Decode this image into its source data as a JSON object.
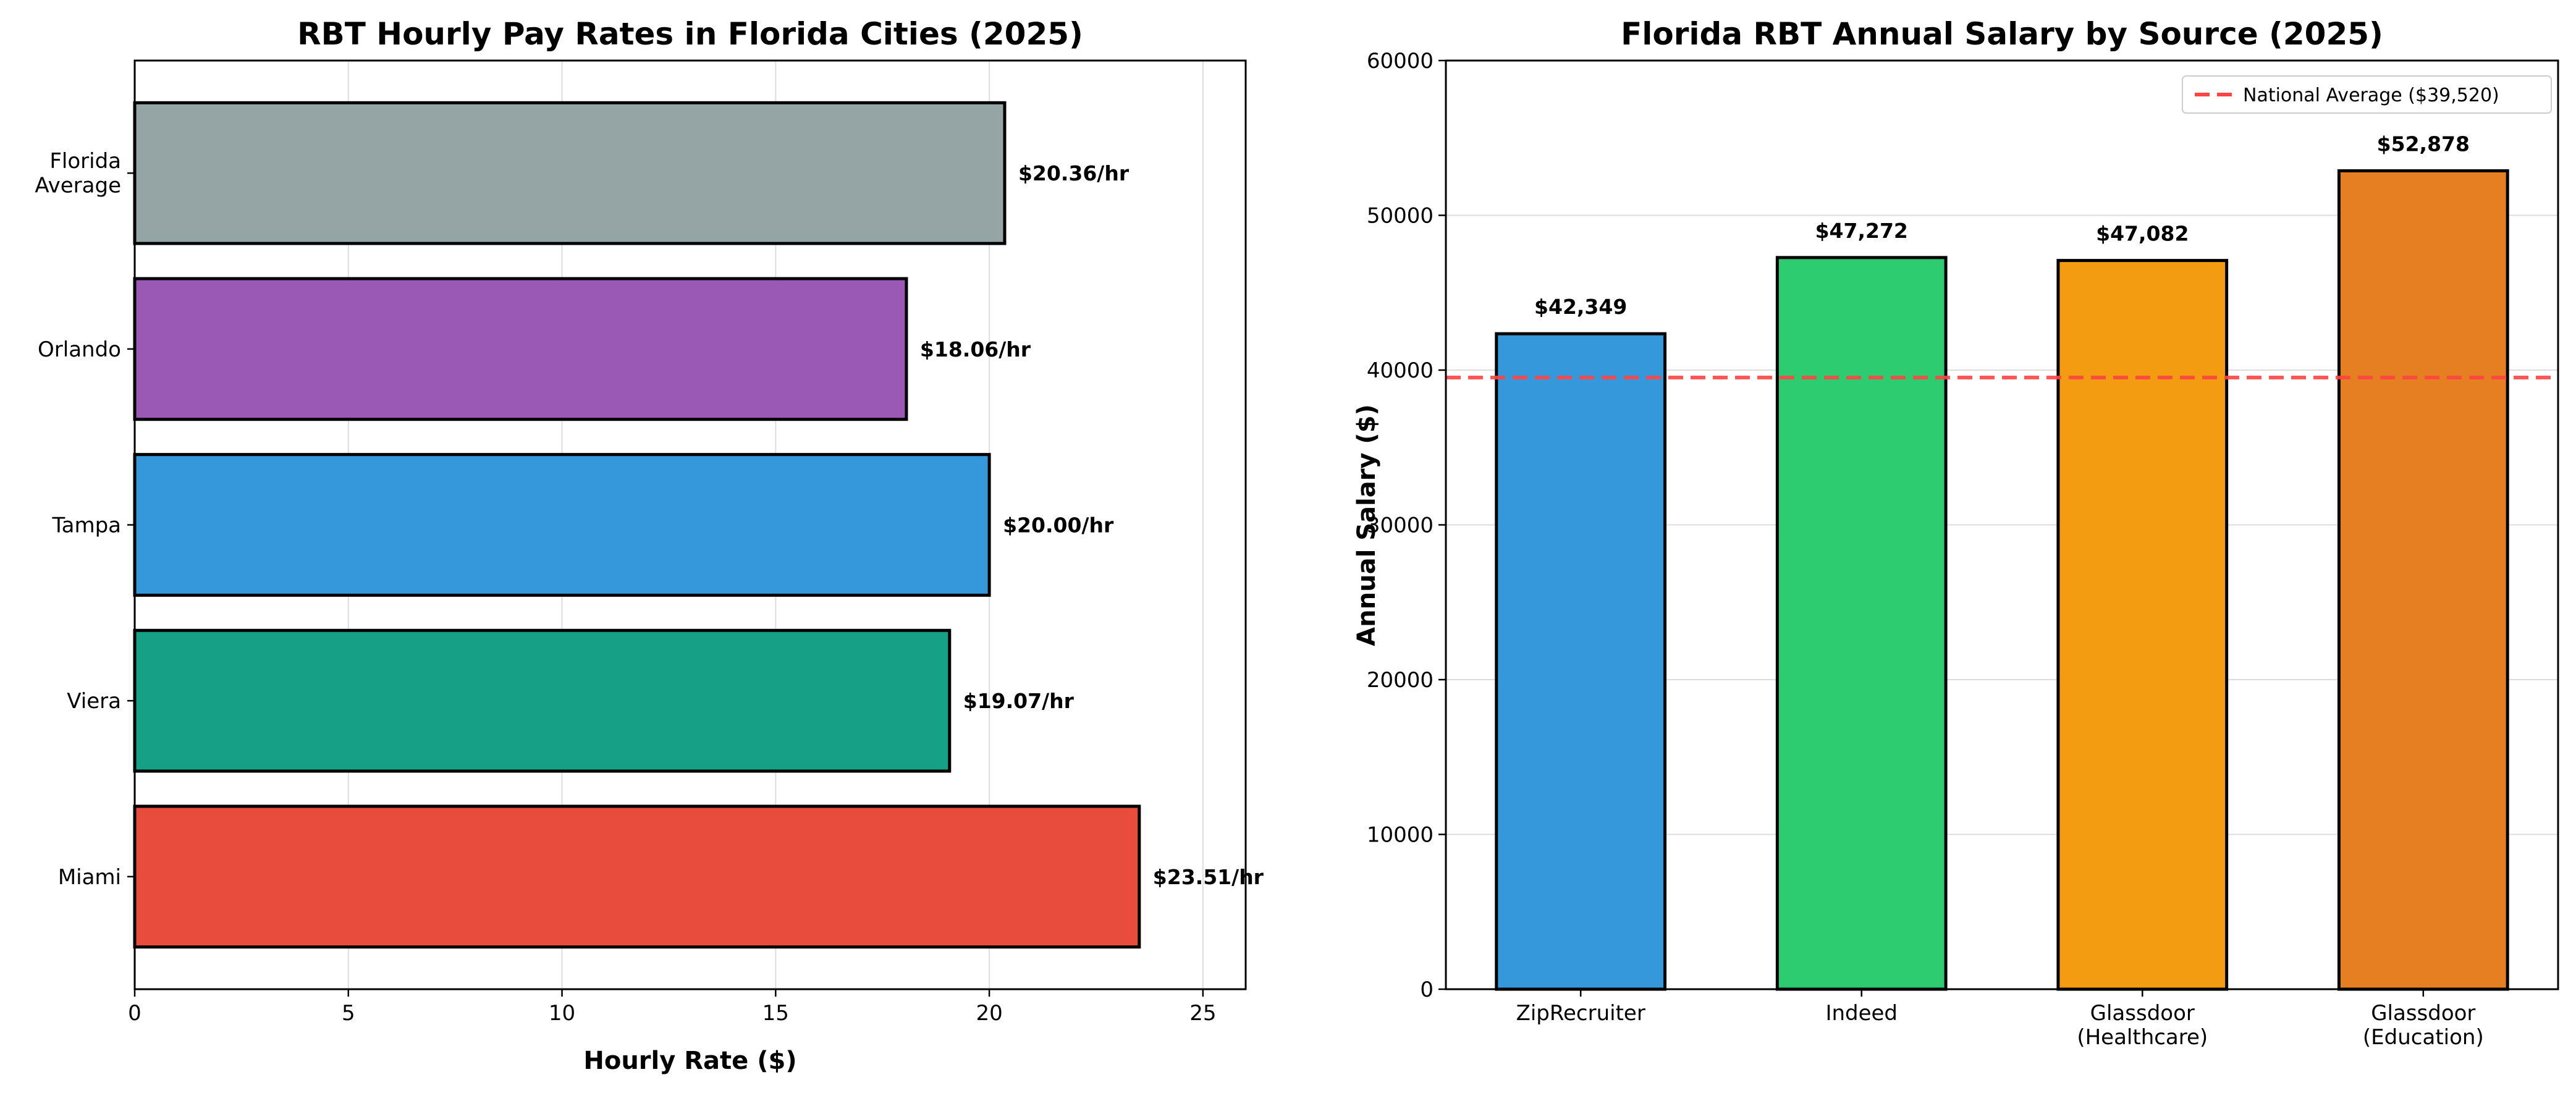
{
  "chart_data": [
    {
      "type": "bar",
      "orientation": "horizontal",
      "title": "RBT Hourly Pay Rates in Florida Cities (2025)",
      "xlabel": "Hourly Rate ($)",
      "ylabel": "",
      "xlim": [
        0,
        26
      ],
      "xticks": [
        0,
        5,
        10,
        15,
        20,
        25
      ],
      "grid": "x",
      "categories": [
        "Miami",
        "Viera",
        "Tampa",
        "Orlando",
        "Florida\nAverage"
      ],
      "values": [
        23.51,
        19.07,
        20.0,
        18.06,
        20.36
      ],
      "data_labels": [
        "$23.51/hr",
        "$19.07/hr",
        "$20.00/hr",
        "$18.06/hr",
        "$20.36/hr"
      ],
      "colors": [
        "#e74c3c",
        "#16a085",
        "#3498db",
        "#9b59b6",
        "#95a5a6"
      ]
    },
    {
      "type": "bar",
      "title": "Florida RBT Annual Salary by Source (2025)",
      "xlabel": "",
      "ylabel": "Annual Salary ($)",
      "ylim": [
        0,
        60000
      ],
      "yticks": [
        0,
        10000,
        20000,
        30000,
        40000,
        50000,
        60000
      ],
      "grid": "y",
      "categories": [
        "ZipRecruiter",
        "Indeed",
        "Glassdoor\n(Healthcare)",
        "Glassdoor\n(Education)"
      ],
      "values": [
        42349,
        47272,
        47082,
        52878
      ],
      "data_labels": [
        "$42,349",
        "$47,272",
        "$47,082",
        "$52,878"
      ],
      "colors": [
        "#3498db",
        "#2ecc71",
        "#f39c12",
        "#e67e22"
      ],
      "reference_line": {
        "value": 39520,
        "label": "National Average ($39,520)",
        "color": "#ff4444",
        "style": "dashed"
      },
      "legend_position": "top-right"
    }
  ]
}
